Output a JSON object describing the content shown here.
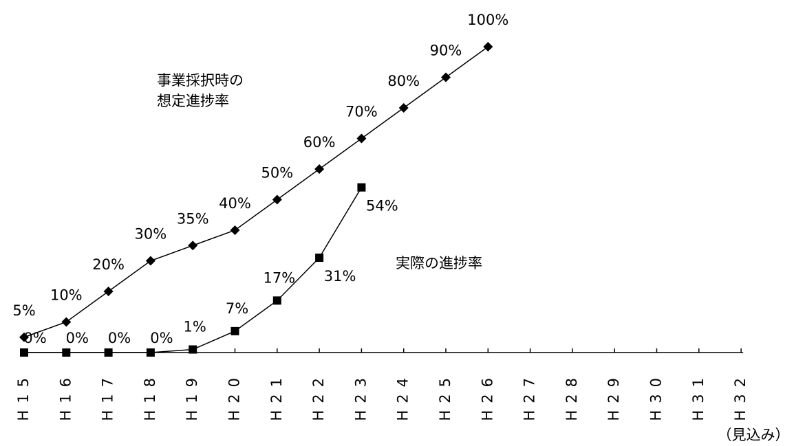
{
  "chart_data": {
    "type": "line",
    "categories": [
      "H15",
      "H16",
      "H17",
      "H18",
      "H19",
      "H20",
      "H21",
      "H22",
      "H23",
      "H24",
      "H25",
      "H26",
      "H27",
      "H28",
      "H29",
      "H30",
      "H31",
      "H32"
    ],
    "series": [
      {
        "name": "事業採択時の\n想定進捗率",
        "color": "#000000",
        "marker": "diamond",
        "values": [
          5,
          10,
          20,
          30,
          35,
          40,
          50,
          60,
          70,
          80,
          90,
          100,
          null,
          null,
          null,
          null,
          null,
          null
        ],
        "value_labels": [
          "5%",
          "10%",
          "20%",
          "30%",
          "35%",
          "40%",
          "50%",
          "60%",
          "70%",
          "80%",
          "90%",
          "100%",
          null,
          null,
          null,
          null,
          null,
          null
        ]
      },
      {
        "name": "実際の進捗率",
        "color": "#000000",
        "marker": "square",
        "values": [
          0,
          0,
          0,
          0,
          1,
          7,
          17,
          31,
          54,
          null,
          null,
          null,
          null,
          null,
          null,
          null,
          null,
          null
        ],
        "value_labels": [
          "0%",
          "0%",
          "0%",
          "0%",
          "1%",
          "7%",
          "17%",
          "31%",
          "54%",
          null,
          null,
          null,
          null,
          null,
          null,
          null,
          null,
          null
        ]
      }
    ],
    "ylim": [
      0,
      100
    ],
    "annotations": [
      "（見込み）"
    ]
  }
}
